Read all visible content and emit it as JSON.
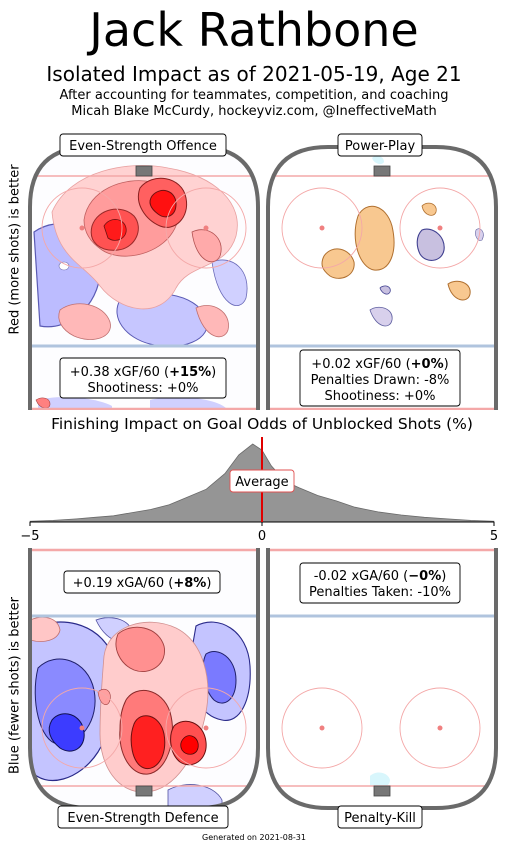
{
  "header": {
    "title": "Jack Rathbone",
    "subtitle": "Isolated Impact as of 2021-05-19, Age 21",
    "note_line1": "After accounting for teammates, competition, and coaching",
    "note_line2": "Micah Blake McCurdy, hockeyviz.com, @IneffectiveMath"
  },
  "axis_labels": {
    "offence_side": "Red (more shots) is better",
    "defence_side": "Blue (fewer shots) is better"
  },
  "panels": {
    "even_strength_offence": {
      "label": "Even-Strength Offence",
      "stat_prefix": "+0.38 xGF/60 (",
      "stat_bold": "+15%",
      "stat_suffix": ")",
      "shootiness": "Shootiness: +0%"
    },
    "power_play": {
      "label": "Power-Play",
      "stat_prefix": "+0.02 xGF/60 (",
      "stat_bold": "+0%",
      "stat_suffix": ")",
      "penalties": "Penalties Drawn: -8%",
      "shootiness": "Shootiness: +0%"
    },
    "even_strength_defence": {
      "label": "Even-Strength Defence",
      "stat_prefix": "+0.19 xGA/60 (",
      "stat_bold": "+8%",
      "stat_suffix": ")"
    },
    "penalty_kill": {
      "label": "Penalty-Kill",
      "stat_prefix": "-0.02 xGA/60 (",
      "stat_bold": "−0%",
      "stat_suffix": ")",
      "penalties": "Penalties Taken: -10%"
    }
  },
  "chart_data": {
    "type": "area",
    "title": "Finishing Impact on Goal Odds of Unblocked Shots (%)",
    "xlim": [
      -5,
      5
    ],
    "x_ticks": [
      -5,
      0,
      5
    ],
    "x_tick_labels": [
      "−5",
      "0",
      "5"
    ],
    "marker_x": 0,
    "marker_label": "Average",
    "x": [
      -5.0,
      -4.5,
      -4.0,
      -3.6,
      -3.2,
      -2.8,
      -2.4,
      -2.0,
      -1.6,
      -1.2,
      -0.8,
      -0.5,
      -0.2,
      0.0,
      0.2,
      0.5,
      0.8,
      1.2,
      1.6,
      2.0,
      2.5,
      3.0,
      3.5,
      4.0,
      4.5,
      5.0
    ],
    "density": [
      0.01,
      0.02,
      0.04,
      0.06,
      0.08,
      0.12,
      0.16,
      0.22,
      0.32,
      0.42,
      0.62,
      0.86,
      1.0,
      0.92,
      0.72,
      0.52,
      0.44,
      0.34,
      0.27,
      0.19,
      0.13,
      0.09,
      0.06,
      0.04,
      0.02,
      0.01
    ]
  },
  "colors": {
    "rink_board": "#6a6a6a",
    "blue_line": "#b0c4de",
    "red_line": "#f4a8a8",
    "density_fill": "#959595",
    "marker": "#e00000",
    "more_shots": "#ff0000",
    "fewer_shots": "#0000ff",
    "pp_more": "#f5c58a",
    "pp_fewer": "#c0b8dc"
  }
}
